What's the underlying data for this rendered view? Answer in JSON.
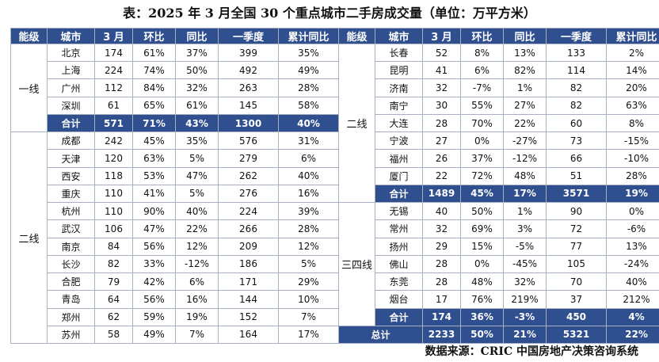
{
  "title": "表：2025 年 3 月全国 30 个重点城市二手房成交量（单位：万平方米）",
  "headers": [
    "能级",
    "城市",
    "3 月",
    "环比",
    "同比",
    "一季度",
    "累计同比"
  ],
  "left_groups": [
    {
      "tier": "一线",
      "rows": [
        {
          "city": "北京",
          "mar": "174",
          "mom": "61%",
          "yoy": "37%",
          "q1": "399",
          "cum": "35%"
        },
        {
          "city": "上海",
          "mar": "224",
          "mom": "74%",
          "yoy": "50%",
          "q1": "492",
          "cum": "49%"
        },
        {
          "city": "广州",
          "mar": "112",
          "mom": "84%",
          "yoy": "32%",
          "q1": "263",
          "cum": "28%"
        },
        {
          "city": "深圳",
          "mar": "61",
          "mom": "65%",
          "yoy": "61%",
          "q1": "145",
          "cum": "58%"
        },
        {
          "city": "合计",
          "mar": "571",
          "mom": "71%",
          "yoy": "43%",
          "q1": "1300",
          "cum": "40%",
          "subtotal": true
        }
      ]
    },
    {
      "tier": "二线",
      "rows": [
        {
          "city": "成都",
          "mar": "242",
          "mom": "45%",
          "yoy": "35%",
          "q1": "576",
          "cum": "31%"
        },
        {
          "city": "天津",
          "mar": "120",
          "mom": "63%",
          "yoy": "5%",
          "q1": "279",
          "cum": "6%"
        },
        {
          "city": "西安",
          "mar": "118",
          "mom": "53%",
          "yoy": "47%",
          "q1": "262",
          "cum": "40%"
        },
        {
          "city": "重庆",
          "mar": "110",
          "mom": "41%",
          "yoy": "5%",
          "q1": "276",
          "cum": "16%"
        },
        {
          "city": "杭州",
          "mar": "110",
          "mom": "90%",
          "yoy": "40%",
          "q1": "224",
          "cum": "39%"
        },
        {
          "city": "武汉",
          "mar": "106",
          "mom": "47%",
          "yoy": "22%",
          "q1": "266",
          "cum": "28%"
        },
        {
          "city": "南京",
          "mar": "84",
          "mom": "56%",
          "yoy": "12%",
          "q1": "209",
          "cum": "12%"
        },
        {
          "city": "长沙",
          "mar": "82",
          "mom": "33%",
          "yoy": "-12%",
          "q1": "186",
          "cum": "5%"
        },
        {
          "city": "合肥",
          "mar": "79",
          "mom": "42%",
          "yoy": "6%",
          "q1": "171",
          "cum": "29%"
        },
        {
          "city": "青岛",
          "mar": "64",
          "mom": "56%",
          "yoy": "16%",
          "q1": "144",
          "cum": "10%"
        },
        {
          "city": "郑州",
          "mar": "62",
          "mom": "59%",
          "yoy": "19%",
          "q1": "152",
          "cum": "7%"
        },
        {
          "city": "苏州",
          "mar": "58",
          "mom": "49%",
          "yoy": "7%",
          "q1": "164",
          "cum": "17%"
        }
      ]
    }
  ],
  "right_groups": [
    {
      "tier": "二线",
      "rows": [
        {
          "city": "长春",
          "mar": "52",
          "mom": "8%",
          "yoy": "13%",
          "q1": "133",
          "cum": "2%"
        },
        {
          "city": "昆明",
          "mar": "41",
          "mom": "6%",
          "yoy": "82%",
          "q1": "114",
          "cum": "14%"
        },
        {
          "city": "济南",
          "mar": "32",
          "mom": "-7%",
          "yoy": "1%",
          "q1": "82",
          "cum": "20%"
        },
        {
          "city": "南宁",
          "mar": "30",
          "mom": "55%",
          "yoy": "27%",
          "q1": "82",
          "cum": "63%"
        },
        {
          "city": "大连",
          "mar": "28",
          "mom": "70%",
          "yoy": "22%",
          "q1": "60",
          "cum": "8%"
        },
        {
          "city": "宁波",
          "mar": "27",
          "mom": "0%",
          "yoy": "-27%",
          "q1": "73",
          "cum": "-15%"
        },
        {
          "city": "福州",
          "mar": "26",
          "mom": "37%",
          "yoy": "-12%",
          "q1": "66",
          "cum": "-10%"
        },
        {
          "city": "厦门",
          "mar": "22",
          "mom": "72%",
          "yoy": "48%",
          "q1": "51",
          "cum": "28%"
        },
        {
          "city": "合计",
          "mar": "1489",
          "mom": "45%",
          "yoy": "17%",
          "q1": "3571",
          "cum": "19%",
          "subtotal": true
        }
      ]
    },
    {
      "tier": "三四线",
      "rows": [
        {
          "city": "无锡",
          "mar": "40",
          "mom": "50%",
          "yoy": "1%",
          "q1": "90",
          "cum": "0%"
        },
        {
          "city": "常州",
          "mar": "32",
          "mom": "69%",
          "yoy": "3%",
          "q1": "72",
          "cum": "-6%"
        },
        {
          "city": "扬州",
          "mar": "29",
          "mom": "15%",
          "yoy": "-5%",
          "q1": "77",
          "cum": "13%"
        },
        {
          "city": "佛山",
          "mar": "28",
          "mom": "0%",
          "yoy": "-45%",
          "q1": "105",
          "cum": "-24%"
        },
        {
          "city": "东莞",
          "mar": "28",
          "mom": "48%",
          "yoy": "32%",
          "q1": "70",
          "cum": "40%"
        },
        {
          "city": "烟台",
          "mar": "17",
          "mom": "76%",
          "yoy": "219%",
          "q1": "37",
          "cum": "212%"
        },
        {
          "city": "合计",
          "mar": "174",
          "mom": "36%",
          "yoy": "-3%",
          "q1": "450",
          "cum": "4%",
          "subtotal": true
        }
      ]
    }
  ],
  "total": {
    "label": "总计",
    "mar": "2233",
    "mom": "50%",
    "yoy": "21%",
    "q1": "5321",
    "cum": "22%"
  },
  "source": "数据来源：CRIC 中国房地产决策咨询系统"
}
